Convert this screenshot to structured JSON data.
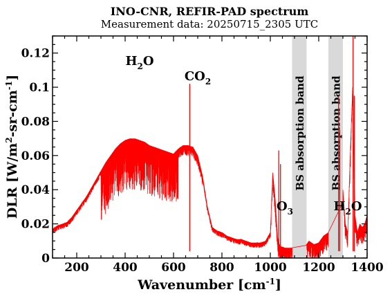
{
  "chart_data": {
    "type": "line",
    "title": "INO-CNR, REFIR-PAD spectrum",
    "subtitle": "Measurement data: 20250715_2305 UTC",
    "xlabel": {
      "main": "Wavenumber [cm",
      "sup": "-1",
      "close": "]"
    },
    "ylabel": {
      "a": "DLR [W/m",
      "sup1": "2",
      "b": "-sr-cm",
      "sup2": "-1",
      "c": "]"
    },
    "xlim": [
      100,
      1400
    ],
    "ylim": [
      0,
      0.13
    ],
    "x_ticks": [
      200,
      400,
      600,
      800,
      1000,
      1200,
      1400
    ],
    "x_tick_labels": [
      "200",
      "400",
      "600",
      "800",
      "1000",
      "1200",
      "1400"
    ],
    "y_ticks": [
      0,
      0.02,
      0.04,
      0.06,
      0.08,
      0.1,
      0.12
    ],
    "y_tick_labels": [
      "0",
      "0.02",
      "0.04",
      "0.06",
      "0.08",
      "0.1",
      "0.12"
    ],
    "grid": false,
    "series": [
      {
        "color": "#ff0000",
        "x": [
          100,
          120,
          140,
          160,
          180,
          200,
          220,
          240,
          260,
          280,
          300,
          320,
          340,
          360,
          380,
          400,
          420,
          440,
          460,
          480,
          500,
          520,
          540,
          560,
          580,
          600,
          620,
          640,
          660,
          680,
          700,
          720,
          740,
          760,
          780,
          800,
          820,
          840,
          860,
          880,
          900,
          920,
          940,
          960,
          980,
          1000,
          1010,
          1020,
          1030,
          1040,
          1060,
          1080,
          1090,
          1150,
          1160,
          1180,
          1200,
          1220,
          1240,
          1290,
          1300,
          1310,
          1320,
          1330,
          1340,
          1350,
          1360,
          1370,
          1380,
          1390,
          1400
        ],
        "y": [
          0.017,
          0.019,
          0.02,
          0.021,
          0.024,
          0.028,
          0.032,
          0.036,
          0.041,
          0.046,
          0.051,
          0.056,
          0.06,
          0.064,
          0.067,
          0.069,
          0.07,
          0.07,
          0.069,
          0.068,
          0.066,
          0.065,
          0.064,
          0.063,
          0.062,
          0.061,
          0.064,
          0.066,
          0.066,
          0.065,
          0.06,
          0.048,
          0.03,
          0.018,
          0.016,
          0.015,
          0.013,
          0.012,
          0.011,
          0.011,
          0.01,
          0.009,
          0.009,
          0.009,
          0.01,
          0.015,
          0.05,
          0.035,
          0.012,
          0.007,
          0.006,
          0.006,
          0.006,
          0.008,
          0.01,
          0.008,
          0.009,
          0.013,
          0.015,
          0.025,
          0.04,
          0.02,
          0.015,
          0.06,
          0.1,
          0.025,
          0.015,
          0.02,
          0.018,
          0.02,
          0.025
        ]
      }
    ],
    "peaks": [
      {
        "x": 667,
        "y": 0.102
      },
      {
        "x": 1342,
        "y": 0.13
      },
      {
        "x": 1347,
        "y": 0.095
      },
      {
        "x": 1282,
        "y": 0.095
      },
      {
        "x": 1287,
        "y": 0.075
      },
      {
        "x": 1035,
        "y": 0.063
      },
      {
        "x": 1042,
        "y": 0.055
      }
    ],
    "bands": [
      {
        "x_start": 1090,
        "x_end": 1150,
        "label": "BS absorption band",
        "color": "#d9d9d9"
      },
      {
        "x_start": 1240,
        "x_end": 1300,
        "label": "BS absorption band",
        "color": "#d9d9d9"
      }
    ],
    "annotations": [
      {
        "base": "H",
        "sub": "2",
        "rest": "O",
        "x": 460,
        "y": 0.113
      },
      {
        "base": "CO",
        "sub": "2",
        "rest": "",
        "x": 700,
        "y": 0.104
      },
      {
        "base": "O",
        "sub": "3",
        "rest": "",
        "x": 1060,
        "y": 0.028
      },
      {
        "base": "H",
        "sub": "2",
        "rest": "O",
        "x": 1320,
        "y": 0.028
      }
    ]
  }
}
